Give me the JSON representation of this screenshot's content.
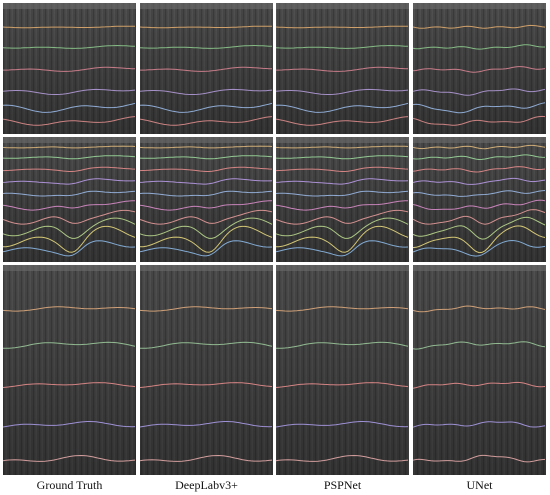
{
  "columns": [
    "Ground Truth",
    "DeepLabv3+",
    "PSPNet",
    "UNet"
  ]
}
